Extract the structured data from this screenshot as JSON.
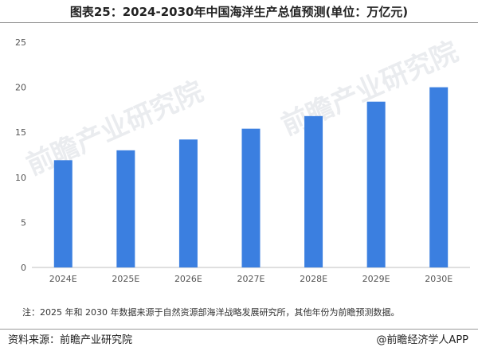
{
  "title": "图表25：2024-2030年中国海洋生产总值预测(单位：万亿元)",
  "watermark": "前瞻产业研究院",
  "chart_data": {
    "type": "bar",
    "title": "图表25：2024-2030年中国海洋生产总值预测(单位：万亿元)",
    "categories": [
      "2024E",
      "2025E",
      "2026E",
      "2027E",
      "2028E",
      "2029E",
      "2030E"
    ],
    "values": [
      11.9,
      13.0,
      14.2,
      15.4,
      16.8,
      18.4,
      20.0
    ],
    "ylim": [
      0,
      25
    ],
    "yticks": [
      0,
      5,
      10,
      15,
      20,
      25
    ],
    "xlabel": "",
    "ylabel": "",
    "grid": false,
    "legend": "none",
    "bar_color": "#3b7fe0"
  },
  "note": "注：2025 年和 2030 年数据来源于自然资源部海洋战略发展研究所，其他年份为前瞻预测数据。",
  "footer": {
    "source": "资料来源：前瞻产业研究院",
    "brand": "@前瞻经济学人APP"
  }
}
